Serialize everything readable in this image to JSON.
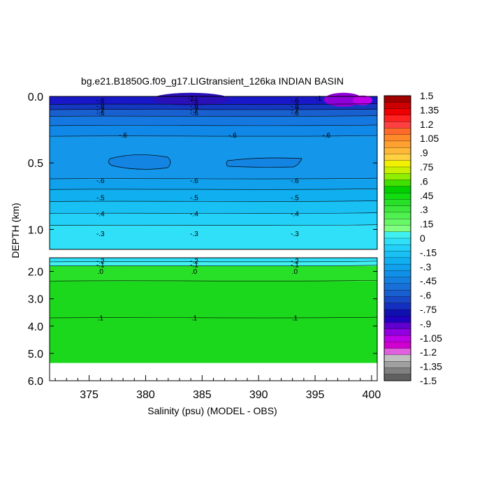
{
  "chart_data": {
    "type": "heatmap",
    "title": "bg.e21.B1850G.f09_g17.LIGtransient_126ka INDIAN BASIN",
    "xlabel": "Salinity (psu) (MODEL - OBS)",
    "ylabel": "DEPTH (km)",
    "xlim": [
      371.5,
      400.5
    ],
    "x_ticks": [
      375,
      380,
      385,
      390,
      395,
      400
    ],
    "x_tick_labels": [
      "375",
      "380",
      "385",
      "390",
      "395",
      "400"
    ],
    "upper_panel": {
      "ylim": [
        0.0,
        1.15
      ],
      "y_ticks": [
        0.0,
        0.5,
        1.0
      ],
      "y_tick_labels": [
        "0.0",
        "0.5",
        "1.0"
      ]
    },
    "lower_panel": {
      "ylim": [
        1.5,
        6.0
      ],
      "y_ticks": [
        2.0,
        3.0,
        4.0,
        5.0,
        6.0
      ],
      "y_tick_labels": [
        "2.0",
        "3.0",
        "4.0",
        "5.0",
        "6.0"
      ]
    },
    "colorbar": {
      "levels": [
        1.5,
        1.35,
        1.2,
        1.05,
        0.9,
        0.75,
        0.6,
        0.45,
        0.3,
        0.15,
        0,
        -0.15,
        -0.3,
        -0.45,
        -0.6,
        -0.75,
        -0.9,
        -1.05,
        -1.2,
        -1.35,
        -1.5
      ],
      "labels": [
        "1.5",
        "1.35",
        "1.2",
        "1.05",
        ".9",
        ".75",
        ".6",
        ".45",
        ".3",
        ".15",
        "0",
        "-.15",
        "-.3",
        "-.45",
        "-.6",
        "-.75",
        "-.9",
        "-1.05",
        "-1.2",
        "-1.35",
        "-1.5"
      ],
      "colors": [
        "#a00000",
        "#cc0000",
        "#ee0000",
        "#ff2020",
        "#ff4040",
        "#ff6a2a",
        "#ff8a2a",
        "#ffa030",
        "#ffb838",
        "#ffd040",
        "#f0f000",
        "#c8f000",
        "#90ee00",
        "#40e000",
        "#00d000",
        "#10dc10",
        "#28e028",
        "#3ce83c",
        "#50f050",
        "#66f866",
        "#80ff80",
        "#40f0f0",
        "#30e0f8",
        "#22d0f8",
        "#18c0f4",
        "#10b0f0",
        "#10a0ec",
        "#1090e8",
        "#1480e0",
        "#1870d8",
        "#1860d0",
        "#1848c8",
        "#1430c0",
        "#1010b0",
        "#2000c0",
        "#6000d0",
        "#9000e0",
        "#c000e8",
        "#d000d0",
        "#e060e0",
        "#c0c0c0",
        "#a0a0a0",
        "#808080",
        "#606060"
      ]
    },
    "upper_bands": [
      {
        "depth": [
          0.0,
          0.06
        ],
        "value": -1.0,
        "color": "#1818c8"
      },
      {
        "depth": [
          0.06,
          0.1
        ],
        "value": -0.85,
        "color": "#1438c0"
      },
      {
        "depth": [
          0.1,
          0.15
        ],
        "value": -0.75,
        "color": "#1860d0"
      },
      {
        "depth": [
          0.15,
          0.22
        ],
        "value": -0.65,
        "color": "#1478e0"
      },
      {
        "depth": [
          0.22,
          0.3
        ],
        "value": -0.6,
        "color": "#1088e8"
      },
      {
        "depth": [
          0.3,
          0.62
        ],
        "value": -0.55,
        "color": "#1496ea"
      },
      {
        "depth": [
          0.62,
          0.7
        ],
        "value": -0.5,
        "color": "#10a0ec"
      },
      {
        "depth": [
          0.7,
          0.79
        ],
        "value": -0.45,
        "color": "#10b0f0"
      },
      {
        "depth": [
          0.79,
          0.88
        ],
        "value": -0.4,
        "color": "#18c0f4"
      },
      {
        "depth": [
          0.88,
          0.97
        ],
        "value": -0.35,
        "color": "#22d0f8"
      },
      {
        "depth": [
          0.97,
          1.15
        ],
        "value": -0.3,
        "color": "#30e0f8"
      }
    ],
    "lower_bands": [
      {
        "depth": [
          1.5,
          1.65
        ],
        "value": -0.2,
        "color": "#30e0f8"
      },
      {
        "depth": [
          1.65,
          1.8
        ],
        "value": -0.1,
        "color": "#40f0f0"
      },
      {
        "depth": [
          1.8,
          2.35
        ],
        "value": 0.05,
        "color": "#28e028"
      },
      {
        "depth": [
          2.35,
          5.35
        ],
        "value": 0.1,
        "color": "#1cd81c"
      }
    ],
    "contour_labels": [
      {
        "text": "-.6",
        "x": [
          376.0,
          384.3,
          393.2
        ],
        "depth": 0.03
      },
      {
        "text": "-.8",
        "x": [
          376.0,
          384.3,
          393.2
        ],
        "depth": 0.07
      },
      {
        "text": "-.7",
        "x": [
          376.0,
          384.3,
          393.2
        ],
        "depth": 0.1
      },
      {
        "text": "-.6",
        "x": [
          376.0,
          384.3,
          393.2
        ],
        "depth": 0.12
      },
      {
        "text": "-.6",
        "x": [
          378.0,
          387.7,
          396.0
        ],
        "depth": 0.29
      },
      {
        "text": "-.6",
        "x": [
          376.0,
          384.3,
          393.2
        ],
        "depth": 0.63
      },
      {
        "text": "-.5",
        "x": [
          376.0,
          384.3,
          393.2
        ],
        "depth": 0.76
      },
      {
        "text": "-.4",
        "x": [
          376.0,
          384.3,
          393.2
        ],
        "depth": 0.88
      },
      {
        "text": "-.3",
        "x": [
          376.0,
          384.3,
          393.2
        ],
        "depth": 1.03
      },
      {
        "text": "-.2",
        "x": [
          376.0,
          384.3,
          393.2
        ],
        "depth": 1.6
      },
      {
        "text": "-.1",
        "x": [
          376.0,
          384.3,
          393.2
        ],
        "depth": 1.74
      },
      {
        "text": ".0",
        "x": [
          376.0,
          384.3,
          393.2
        ],
        "depth": 1.98
      },
      {
        "text": ".1",
        "x": [
          376.0,
          384.3,
          393.2
        ],
        "depth": 3.68
      },
      {
        "text": "-1",
        "x": [
          384.0,
          395.3
        ],
        "depth": 0.01
      }
    ],
    "contour_lines": [
      {
        "panel": "upper",
        "depth": 0.06
      },
      {
        "panel": "upper",
        "depth": 0.1
      },
      {
        "panel": "upper",
        "depth": 0.15
      },
      {
        "panel": "upper",
        "depth": 0.22
      },
      {
        "panel": "upper",
        "depth": 0.3
      },
      {
        "panel": "upper",
        "depth": 0.62
      },
      {
        "panel": "upper",
        "depth": 0.7
      },
      {
        "panel": "upper",
        "depth": 0.79
      },
      {
        "panel": "upper",
        "depth": 0.88
      },
      {
        "panel": "upper",
        "depth": 0.97
      },
      {
        "panel": "lower",
        "depth": 1.65
      },
      {
        "panel": "lower",
        "depth": 1.8
      },
      {
        "panel": "lower",
        "depth": 2.35
      },
      {
        "panel": "lower",
        "depth": 3.7
      }
    ]
  }
}
